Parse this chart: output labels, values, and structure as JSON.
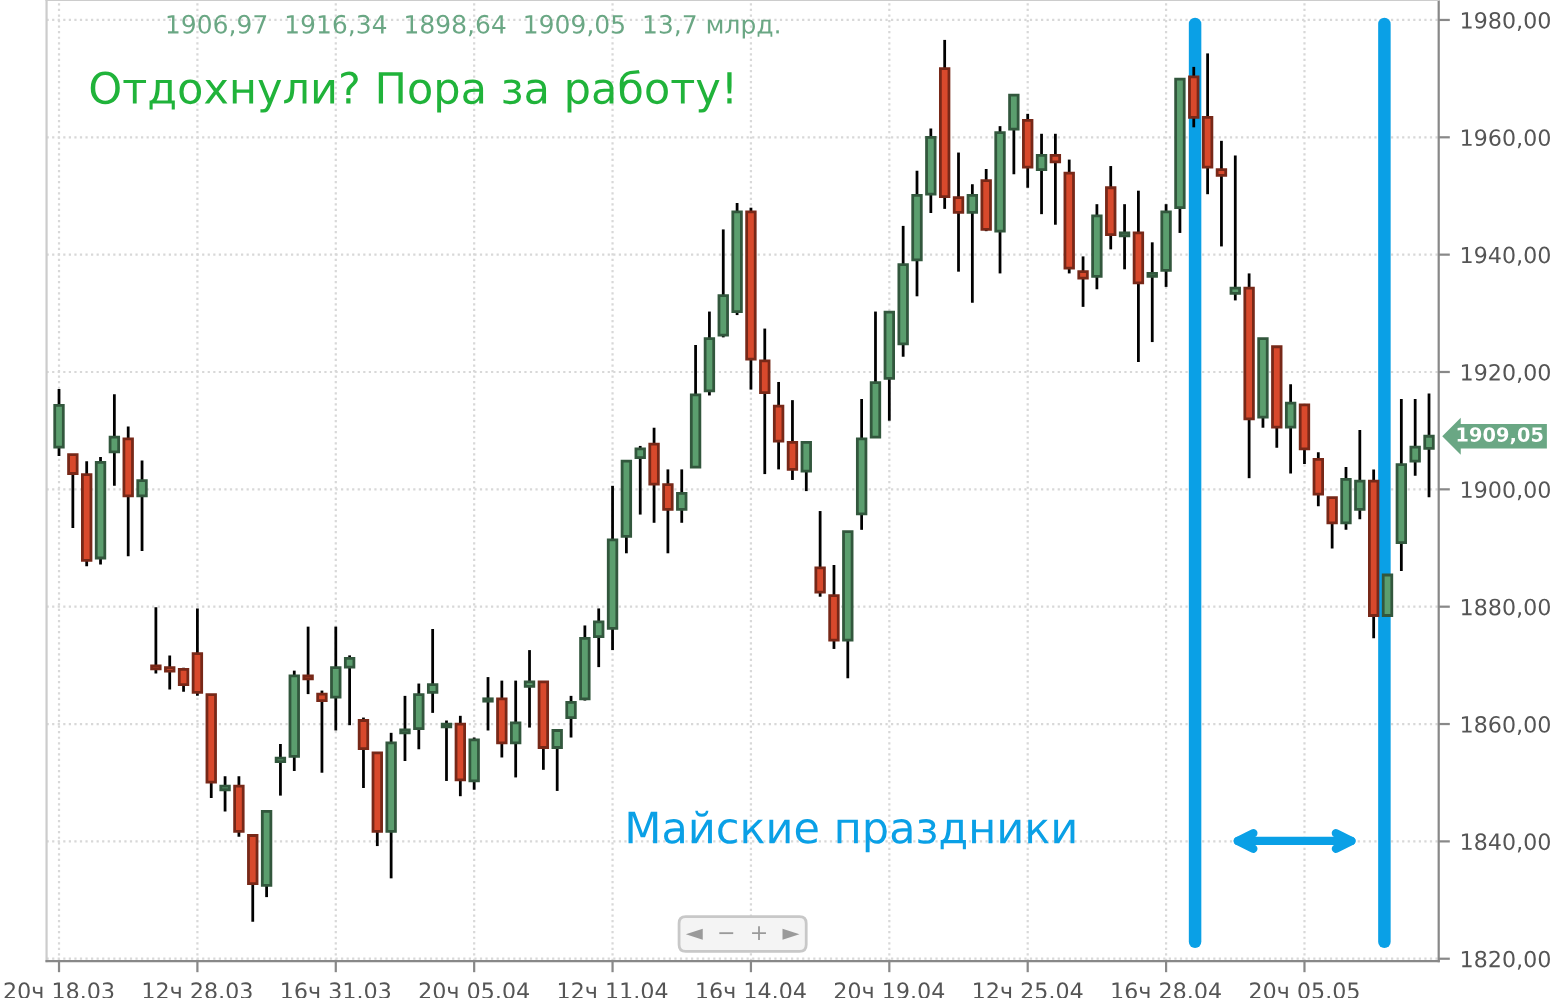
{
  "chart_data": {
    "type": "candlestick",
    "categories": [
      "20ч 18.03",
      null,
      null,
      null,
      null,
      null,
      null,
      null,
      null,
      null,
      "12ч 28.03",
      null,
      null,
      null,
      null,
      null,
      null,
      null,
      null,
      null,
      "16ч 31.03",
      null,
      null,
      null,
      null,
      null,
      null,
      null,
      null,
      null,
      "20ч 05.04",
      null,
      null,
      null,
      null,
      null,
      null,
      null,
      null,
      null,
      "12ч 11.04",
      null,
      null,
      null,
      null,
      null,
      null,
      null,
      null,
      null,
      "16ч 14.04",
      null,
      null,
      null,
      null,
      null,
      null,
      null,
      null,
      null,
      "20ч 19.04",
      null,
      null,
      null,
      null,
      null,
      null,
      null,
      null,
      null,
      "12ч 25.04",
      null,
      null,
      null,
      null,
      null,
      null,
      null,
      null,
      null,
      "16ч 28.04",
      null,
      null,
      null,
      null,
      null,
      null,
      null,
      null,
      null,
      "20ч 05.05",
      null,
      null,
      null,
      null,
      null,
      null,
      null,
      null,
      null
    ],
    "ohlc": [
      [
        1907.2,
        1917.1,
        1905.7,
        1914.3
      ],
      [
        1905.9,
        1905.9,
        1893.4,
        1902.7
      ],
      [
        1902.5,
        1904.8,
        1886.9,
        1887.9
      ],
      [
        1888.3,
        1905.5,
        1887.2,
        1904.6
      ],
      [
        1906.4,
        1916.2,
        1900.6,
        1908.9
      ],
      [
        1908.6,
        1910.7,
        1888.6,
        1898.9
      ],
      [
        1898.9,
        1904.9,
        1889.5,
        1901.5
      ],
      [
        1869.9,
        1879.9,
        1868.6,
        1869.4
      ],
      [
        1869.6,
        1871.7,
        1865.9,
        1869.0
      ],
      [
        1869.3,
        1869.6,
        1865.5,
        1866.7
      ],
      [
        1872.0,
        1879.7,
        1864.8,
        1865.4
      ],
      [
        1865.0,
        1865.0,
        1847.4,
        1850.1
      ],
      [
        1848.8,
        1851.1,
        1845.1,
        1849.4
      ],
      [
        1849.4,
        1851.1,
        1840.8,
        1841.7
      ],
      [
        1841.0,
        1841.0,
        1826.3,
        1832.8
      ],
      [
        1832.5,
        1845.1,
        1830.5,
        1845.1
      ],
      [
        1853.6,
        1856.6,
        1847.8,
        1854.2
      ],
      [
        1854.5,
        1869.1,
        1852.0,
        1868.2
      ],
      [
        1868.2,
        1876.6,
        1865.1,
        1867.7
      ],
      [
        1865.1,
        1865.7,
        1851.7,
        1864.0
      ],
      [
        1864.6,
        1876.6,
        1858.9,
        1869.6
      ],
      [
        1869.7,
        1871.7,
        1859.8,
        1871.2
      ],
      [
        1860.6,
        1861.1,
        1849.1,
        1855.8
      ],
      [
        1855.1,
        1855.1,
        1839.2,
        1841.7
      ],
      [
        1841.7,
        1858.5,
        1833.7,
        1856.8
      ],
      [
        1858.5,
        1864.8,
        1853.7,
        1859.0
      ],
      [
        1859.2,
        1866.9,
        1855.7,
        1865.0
      ],
      [
        1865.4,
        1876.2,
        1861.9,
        1866.7
      ],
      [
        1859.5,
        1860.6,
        1850.3,
        1860.0
      ],
      [
        1860.0,
        1861.4,
        1847.7,
        1850.5
      ],
      [
        1850.3,
        1857.7,
        1848.8,
        1857.3
      ],
      [
        1863.9,
        1868.0,
        1858.9,
        1864.3
      ],
      [
        1864.3,
        1867.4,
        1854.3,
        1856.8
      ],
      [
        1856.8,
        1867.4,
        1850.9,
        1860.2
      ],
      [
        1866.4,
        1872.6,
        1859.4,
        1867.2
      ],
      [
        1867.2,
        1867.2,
        1852.2,
        1856.0
      ],
      [
        1856.0,
        1858.9,
        1848.6,
        1858.9
      ],
      [
        1861.1,
        1864.8,
        1857.7,
        1863.7
      ],
      [
        1864.3,
        1876.8,
        1864.0,
        1874.6
      ],
      [
        1874.9,
        1879.7,
        1869.7,
        1877.4
      ],
      [
        1876.3,
        1900.6,
        1872.6,
        1891.4
      ],
      [
        1892.0,
        1904.8,
        1889.1,
        1904.8
      ],
      [
        1905.4,
        1907.4,
        1895.7,
        1906.9
      ],
      [
        1907.7,
        1910.5,
        1894.3,
        1900.9
      ],
      [
        1900.8,
        1903.4,
        1889.1,
        1896.6
      ],
      [
        1896.6,
        1903.4,
        1894.3,
        1899.3
      ],
      [
        1903.8,
        1924.6,
        1903.8,
        1916.1
      ],
      [
        1916.8,
        1930.3,
        1916.0,
        1925.7
      ],
      [
        1926.3,
        1944.3,
        1925.9,
        1933.0
      ],
      [
        1930.3,
        1948.8,
        1929.7,
        1947.3
      ],
      [
        1947.3,
        1948.0,
        1917.0,
        1922.2
      ],
      [
        1921.9,
        1927.4,
        1902.6,
        1916.5
      ],
      [
        1914.2,
        1918.3,
        1903.4,
        1908.2
      ],
      [
        1908.0,
        1915.2,
        1901.6,
        1903.4
      ],
      [
        1903.1,
        1908.0,
        1899.7,
        1908.0
      ],
      [
        1886.6,
        1896.3,
        1881.7,
        1882.5
      ],
      [
        1881.9,
        1887.1,
        1872.8,
        1874.3
      ],
      [
        1874.3,
        1892.8,
        1867.8,
        1892.8
      ],
      [
        1895.8,
        1915.4,
        1893.1,
        1908.6
      ],
      [
        1908.9,
        1930.3,
        1908.9,
        1918.2
      ],
      [
        1918.9,
        1930.3,
        1911.7,
        1930.2
      ],
      [
        1924.8,
        1944.9,
        1922.6,
        1938.3
      ],
      [
        1939.1,
        1954.3,
        1932.9,
        1950.1
      ],
      [
        1950.3,
        1961.5,
        1947.1,
        1960.0
      ],
      [
        1971.7,
        1976.6,
        1947.8,
        1949.9
      ],
      [
        1949.7,
        1957.4,
        1937.1,
        1947.2
      ],
      [
        1947.2,
        1952.0,
        1931.8,
        1950.1
      ],
      [
        1952.6,
        1954.6,
        1944.0,
        1944.3
      ],
      [
        1944.0,
        1961.9,
        1936.8,
        1960.8
      ],
      [
        1961.4,
        1967.2,
        1953.7,
        1967.2
      ],
      [
        1962.9,
        1964.0,
        1951.4,
        1954.9
      ],
      [
        1954.5,
        1960.6,
        1946.9,
        1956.9
      ],
      [
        1956.9,
        1960.6,
        1945.1,
        1955.8
      ],
      [
        1953.9,
        1956.2,
        1936.8,
        1937.7
      ],
      [
        1937.1,
        1939.7,
        1931.1,
        1936.0
      ],
      [
        1936.3,
        1948.6,
        1934.1,
        1946.6
      ],
      [
        1951.4,
        1955.1,
        1940.9,
        1943.4
      ],
      [
        1943.2,
        1948.6,
        1937.5,
        1943.7
      ],
      [
        1943.7,
        1950.9,
        1921.7,
        1935.2
      ],
      [
        1936.3,
        1942.1,
        1925.1,
        1936.8
      ],
      [
        1937.3,
        1948.6,
        1934.5,
        1947.3
      ],
      [
        1948.0,
        1969.9,
        1943.7,
        1969.9
      ],
      [
        1970.3,
        1972.0,
        1961.7,
        1963.4
      ],
      [
        1963.4,
        1974.3,
        1950.3,
        1954.9
      ],
      [
        1954.5,
        1959.4,
        1941.4,
        1953.5
      ],
      [
        1933.4,
        1956.9,
        1932.2,
        1934.3
      ],
      [
        1934.3,
        1936.8,
        1901.9,
        1912.0
      ],
      [
        1912.3,
        1925.7,
        1910.5,
        1925.7
      ],
      [
        1924.3,
        1924.3,
        1907.1,
        1910.6
      ],
      [
        1910.6,
        1917.9,
        1902.7,
        1914.7
      ],
      [
        1914.4,
        1914.4,
        1904.3,
        1906.9
      ],
      [
        1905.1,
        1906.3,
        1897.1,
        1899.2
      ],
      [
        1898.6,
        1898.6,
        1889.9,
        1894.3
      ],
      [
        1894.3,
        1903.8,
        1893.1,
        1901.7
      ],
      [
        1896.6,
        1910.1,
        1894.9,
        1901.4
      ],
      [
        1901.4,
        1903.4,
        1874.6,
        1878.5
      ],
      [
        1878.5,
        1885.4,
        1878.5,
        1885.4
      ],
      [
        1890.9,
        1915.4,
        1886.1,
        1904.2
      ],
      [
        1904.8,
        1915.4,
        1902.3,
        1907.2
      ],
      [
        1906.97,
        1916.34,
        1898.64,
        1909.05
      ]
    ],
    "colors": [
      "#5b9e6e",
      "#d8492c",
      "#d8492c",
      "#5b9e6e",
      "#5b9e6e",
      "#d8492c",
      "#5b9e6e",
      "#d8492c",
      "#d8492c",
      "#d8492c",
      "#d8492c",
      "#d8492c",
      "#5b9e6e",
      "#d8492c",
      "#d8492c",
      "#5b9e6e",
      "#5b9e6e",
      "#5b9e6e",
      "#d8492c",
      "#d8492c",
      "#5b9e6e",
      "#5b9e6e",
      "#d8492c",
      "#d8492c",
      "#5b9e6e",
      "#5b9e6e",
      "#5b9e6e",
      "#5b9e6e",
      "#5b9e6e",
      "#d8492c",
      "#5b9e6e",
      "#5b9e6e",
      "#d8492c",
      "#5b9e6e",
      "#5b9e6e",
      "#d8492c",
      "#5b9e6e",
      "#5b9e6e",
      "#5b9e6e",
      "#5b9e6e",
      "#5b9e6e",
      "#5b9e6e",
      "#5b9e6e",
      "#d8492c",
      "#d8492c",
      "#5b9e6e",
      "#5b9e6e",
      "#5b9e6e",
      "#5b9e6e",
      "#5b9e6e",
      "#d8492c",
      "#d8492c",
      "#d8492c",
      "#d8492c",
      "#5b9e6e",
      "#d8492c",
      "#d8492c",
      "#5b9e6e",
      "#5b9e6e",
      "#5b9e6e",
      "#5b9e6e",
      "#5b9e6e",
      "#5b9e6e",
      "#5b9e6e",
      "#d8492c",
      "#d8492c",
      "#5b9e6e",
      "#d8492c",
      "#5b9e6e",
      "#5b9e6e",
      "#d8492c",
      "#5b9e6e",
      "#d8492c",
      "#d8492c",
      "#d8492c",
      "#5b9e6e",
      "#d8492c",
      "#5b9e6e",
      "#d8492c",
      "#5b9e6e",
      "#5b9e6e",
      "#5b9e6e",
      "#d8492c",
      "#d8492c",
      "#d8492c",
      "#5b9e6e",
      "#d8492c",
      "#5b9e6e",
      "#d8492c",
      "#5b9e6e",
      "#d8492c",
      "#d8492c",
      "#d8492c",
      "#5b9e6e",
      "#5b9e6e",
      "#d8492c",
      "#5b9e6e",
      "#5b9e6e",
      "#5b9e6e",
      "#5b9e6e"
    ],
    "ylim": [
      1819.6,
      1983.4
    ],
    "yticks": [
      {
        "value": 1820,
        "label": "1820,00"
      },
      {
        "value": 1840,
        "label": "1840,00"
      },
      {
        "value": 1860,
        "label": "1860,00"
      },
      {
        "value": 1880,
        "label": "1880,00"
      },
      {
        "value": 1900,
        "label": "1900,00"
      },
      {
        "value": 1920,
        "label": "1920,00"
      },
      {
        "value": 1940,
        "label": "1940,00"
      },
      {
        "value": 1960,
        "label": "1960,00"
      },
      {
        "value": 1980,
        "label": "1980,00"
      }
    ],
    "grid": true,
    "annotations": [
      "1906,97  1916,34  1898,64  1909,05  13,7 млрд.",
      "Отдохнули? Пора за работу!",
      "Майские праздники",
      "◄  −  +  ►",
      "1909,05"
    ]
  }
}
